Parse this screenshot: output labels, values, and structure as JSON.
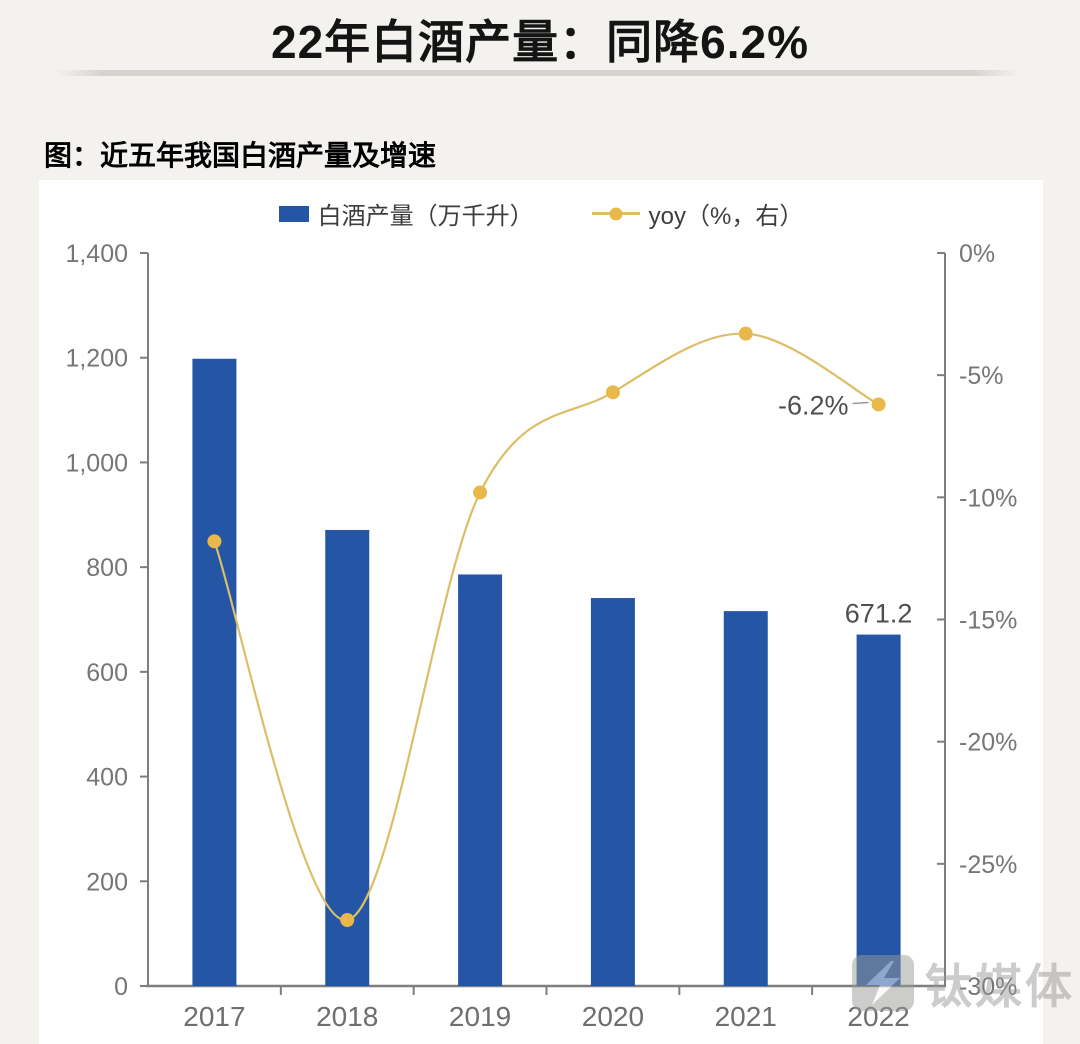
{
  "page": {
    "title": "22年白酒产量：同降6.2%",
    "subtitle": "图：近五年我国白酒产量及增速"
  },
  "watermark": {
    "text": "钛媒体"
  },
  "colors": {
    "page_background": "#f3f2ef",
    "card_background": "#ffffff",
    "bar": "#2456a5",
    "line": "#dcbe66",
    "marker": "#e8b84a",
    "axis": "#7d7d7d",
    "tick_label": "#767676",
    "category_label": "#6e6e6e",
    "data_label": "#4e4e4e"
  },
  "chart_data": {
    "type": "bar",
    "title": "近五年我国白酒产量及增速",
    "categories": [
      "2017",
      "2018",
      "2019",
      "2020",
      "2021",
      "2022"
    ],
    "series": [
      {
        "name": "白酒产量（万千升）",
        "type": "bar",
        "axis": "left",
        "color": "#2456a5",
        "values": [
          1198,
          871,
          786,
          741,
          716,
          671.2
        ],
        "value_labels": [
          null,
          null,
          null,
          null,
          null,
          "671.2"
        ]
      },
      {
        "name": "yoy（%，右）",
        "type": "line",
        "axis": "right",
        "color": "#dcbe66",
        "marker_color": "#e8b84a",
        "values": [
          -11.8,
          -27.3,
          -9.8,
          -5.7,
          -3.3,
          -6.2
        ],
        "value_labels": [
          null,
          null,
          null,
          null,
          null,
          "-6.2%"
        ]
      }
    ],
    "left_axis": {
      "min": 0,
      "max": 1400,
      "step": 200,
      "tick_labels": [
        "0",
        "200",
        "400",
        "600",
        "800",
        "1,000",
        "1,200",
        "1,400"
      ]
    },
    "right_axis": {
      "min": -30,
      "max": 0,
      "step": 5,
      "tick_labels": [
        "0%",
        "-5%",
        "-10%",
        "-15%",
        "-20%",
        "-25%",
        "-30%"
      ]
    },
    "legend_position": "top",
    "grid": false
  }
}
